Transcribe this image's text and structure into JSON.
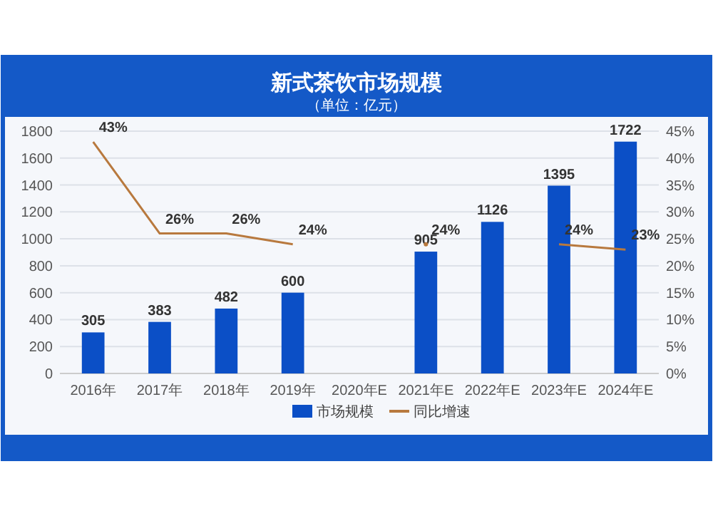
{
  "chart_data": {
    "type": "bar",
    "title": "新式茶饮市场规模",
    "subtitle": "（单位：亿元）",
    "categories": [
      "2016年",
      "2017年",
      "2018年",
      "2019年",
      "2020年E",
      "2021年E",
      "2022年E",
      "2023年E",
      "2024年E"
    ],
    "series": [
      {
        "name": "市场规模",
        "color": "#0b4fc6",
        "values": [
          305,
          383,
          482,
          600,
          null,
          905,
          1126,
          1395,
          1722
        ],
        "value_labels": [
          "305",
          "383",
          "482",
          "600",
          null,
          "905",
          "1126",
          "1395",
          "1722"
        ]
      },
      {
        "name": "同比增速",
        "type": "line",
        "axis": "y2",
        "color": "#b8793e",
        "values": [
          43,
          26,
          26,
          24,
          null,
          24,
          null,
          24,
          23
        ],
        "value_labels": [
          "43%",
          "26%",
          "26%",
          "24%",
          null,
          "24%",
          null,
          "24%",
          "23%"
        ]
      }
    ],
    "ylim": [
      0,
      1800
    ],
    "yticks": [
      0,
      200,
      400,
      600,
      800,
      1000,
      1200,
      1400,
      1600,
      1800
    ],
    "y2lim": [
      0,
      45
    ],
    "y2ticks": [
      {
        "value": 0,
        "label": "0%"
      },
      {
        "value": 5,
        "label": "5%"
      },
      {
        "value": 10,
        "label": "10%"
      },
      {
        "value": 15,
        "label": "15%"
      },
      {
        "value": 20,
        "label": "20%"
      },
      {
        "value": 25,
        "label": "25%"
      },
      {
        "value": 30,
        "label": "30%"
      },
      {
        "value": 35,
        "label": "35%"
      },
      {
        "value": 40,
        "label": "40%"
      },
      {
        "value": 45,
        "label": "45%"
      }
    ],
    "grid": "y",
    "legend": "bottom",
    "marker": "none",
    "line_style": "solid"
  }
}
